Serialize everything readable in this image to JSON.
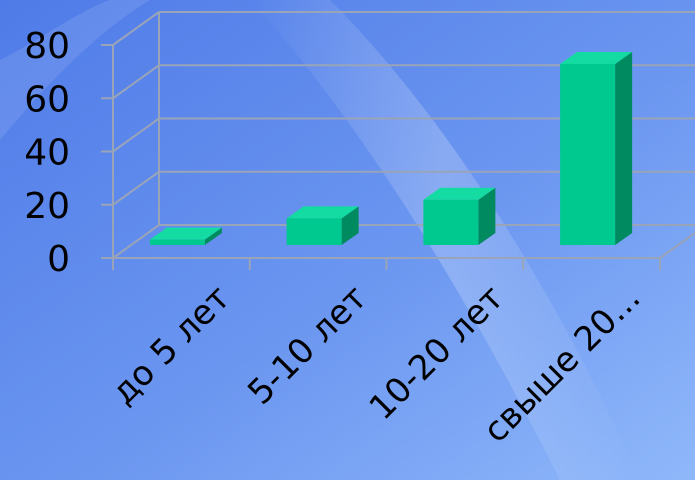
{
  "chart_data": {
    "type": "bar",
    "categories": [
      "до 5 лет",
      "5-10 лет",
      "10-20 лет",
      "свыше 20..."
    ],
    "values": [
      2,
      10,
      17,
      68
    ],
    "ylim": [
      0,
      80
    ],
    "yticks": [
      0,
      20,
      40,
      60,
      80
    ],
    "ytick_labels": [
      "0",
      "20",
      "40",
      "60",
      "80"
    ],
    "grid": true,
    "style": "3d",
    "colors": {
      "bar_front": "#00c98f",
      "bar_top": "#14dba1",
      "bar_side": "#008a60",
      "background_top": "#5a86ec",
      "background_bottom": "#7aa8f6",
      "gridline": "#9aa4b8"
    }
  }
}
